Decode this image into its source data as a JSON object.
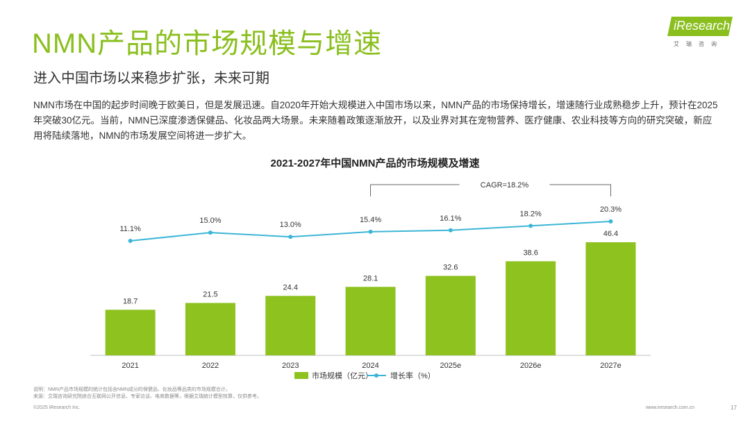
{
  "slide": {
    "title": "NMN产品的市场规模与增速",
    "subtitle": "进入中国市场以来稳步扩张，未来可期",
    "body": "NMN市场在中国的起步时间晚于欧美日，但是发展迅速。自2020年开始大规模进入中国市场以来，NMN产品的市场保持增长，增速随行业成熟稳步上升，预计在2025年突破30亿元。当前，NMN已深度渗透保健品、化妆品两大场景。未来随着政策逐渐放开，以及业界对其在宠物营养、医疗健康、农业科技等方向的研究突破，新应用将陆续落地，NMN的市场发展空间将进一步扩大。",
    "logo_text": "iResearch",
    "logo_cn": "艾瑞咨询",
    "note_line1": "说明：NMN产品市场规模的统计包括含NMN成分的保健品、化妆品等品类的市场规模合计。",
    "note_line2": "来源：艾瑞咨询研究院综合互联网公开信息、专家访谈、电商数据等，根据艾瑞统计模型核算，仅供参考。",
    "copyright": "©2025 iResearch Inc.",
    "site": "www.iresearch.com.cn",
    "page": "17"
  },
  "colors": {
    "accent": "#8ABF1E",
    "bar": "#8DC21F",
    "line": "#3BB5D6"
  },
  "chart_data": {
    "type": "bar",
    "title": "2021-2027年中国NMN产品的市场规模及增速",
    "categories": [
      "2021",
      "2022",
      "2023",
      "2024",
      "2025e",
      "2026e",
      "2027e"
    ],
    "series": [
      {
        "name": "市场规模（亿元）",
        "type": "bar",
        "values": [
          18.7,
          21.5,
          24.4,
          28.1,
          32.6,
          38.6,
          46.4
        ]
      },
      {
        "name": "增长率（%）",
        "type": "line",
        "values": [
          11.1,
          15.0,
          13.0,
          15.4,
          16.1,
          18.2,
          20.3
        ],
        "labels": [
          "11.1%",
          "15.0%",
          "13.0%",
          "15.4%",
          "16.1%",
          "18.2%",
          "20.3%"
        ]
      }
    ],
    "bar_ylim": [
      0,
      46.4
    ],
    "line_ylim": [
      0,
      20.3
    ],
    "annotation": "CAGR=18.2%",
    "legend_position": "bottom-center"
  }
}
